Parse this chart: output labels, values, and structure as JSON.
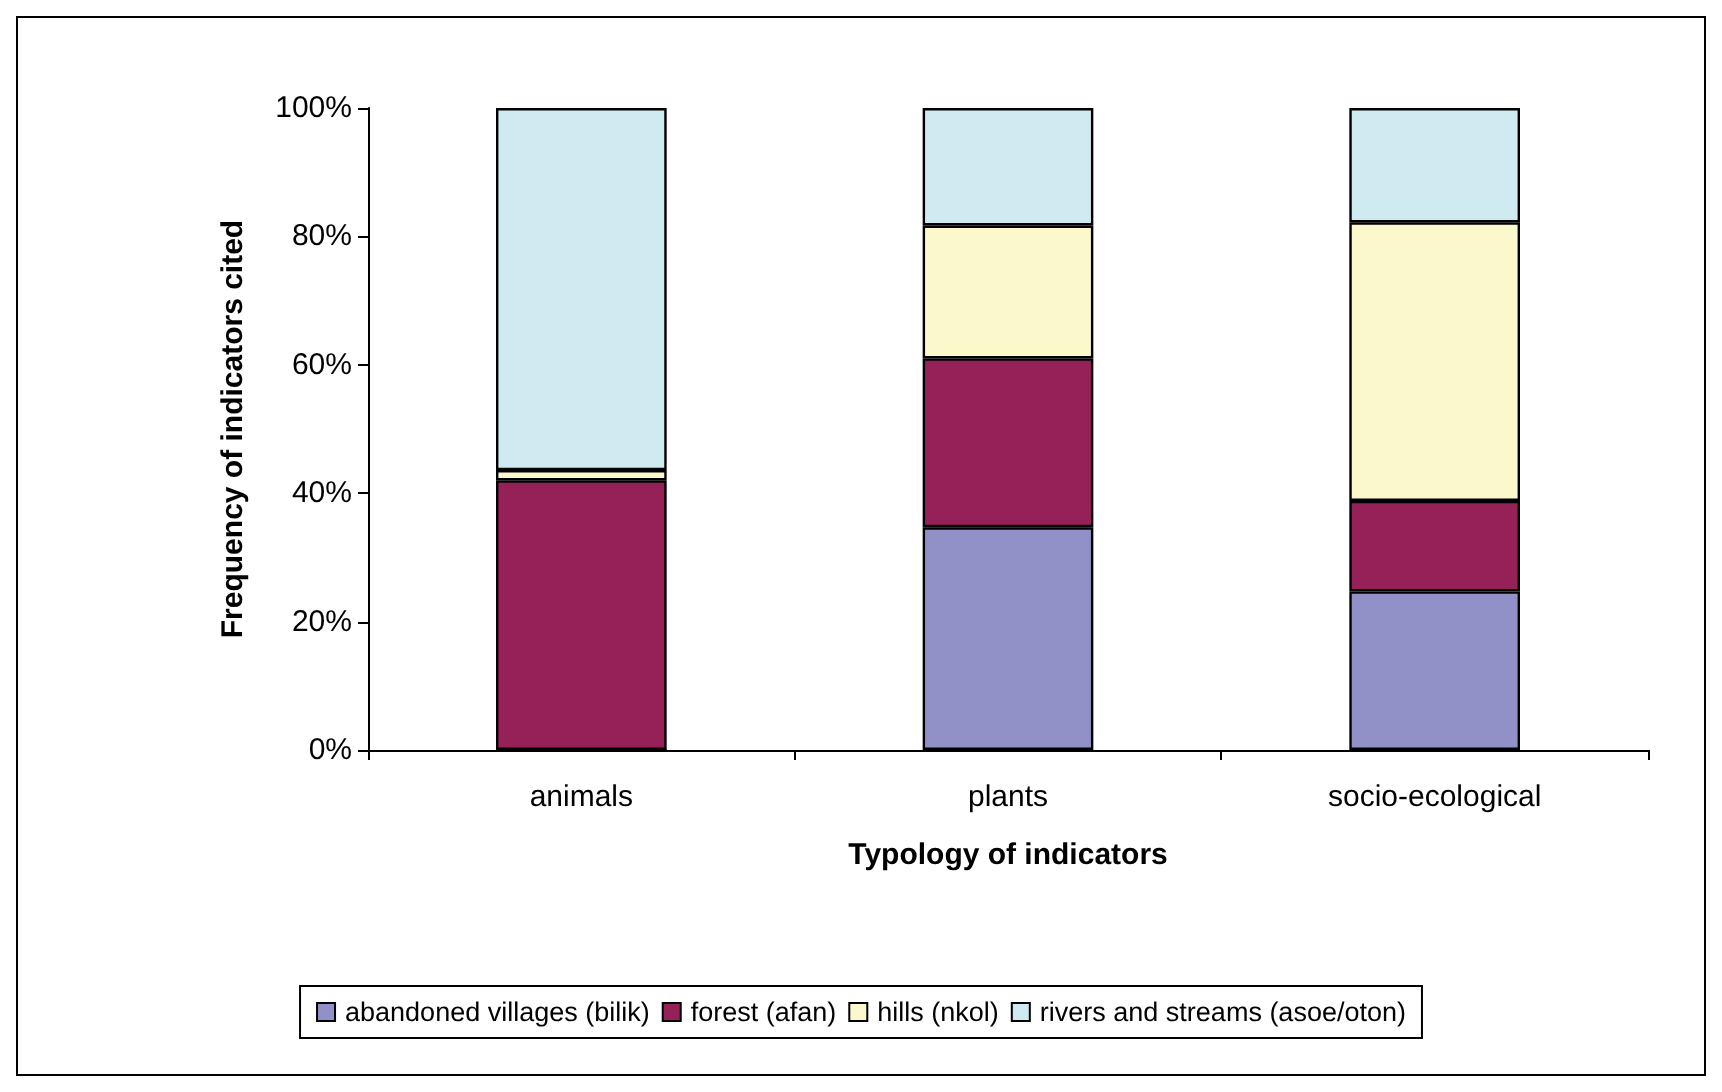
{
  "chart_data": {
    "type": "bar",
    "stacked": true,
    "xlabel": "Typology of indicators",
    "ylabel": "Frequency of indicators cited",
    "categories": [
      "animals",
      "plants",
      "socio-ecological"
    ],
    "series": [
      {
        "name": "abandoned villages (bilik)",
        "color": "#9191c8",
        "values": [
          0,
          34.7,
          24.7
        ]
      },
      {
        "name": "forest (afan)",
        "color": "#962058",
        "values": [
          42,
          26.3,
          14.1
        ]
      },
      {
        "name": "hills (nkol)",
        "color": "#fbf8cc",
        "values": [
          1.6,
          20.7,
          43.4
        ]
      },
      {
        "name": "rivers and streams (asoe/oton)",
        "color": "#cfebf1",
        "values": [
          56.4,
          18.3,
          17.8
        ]
      }
    ],
    "ylim": [
      0,
      100
    ],
    "yticks": [
      {
        "value": 0,
        "label": "0%"
      },
      {
        "value": 20,
        "label": "20%"
      },
      {
        "value": 40,
        "label": "40%"
      },
      {
        "value": 60,
        "label": "60%"
      },
      {
        "value": 80,
        "label": "80%"
      },
      {
        "value": 100,
        "label": "100%"
      }
    ],
    "grid": false,
    "legend": "bottom"
  }
}
